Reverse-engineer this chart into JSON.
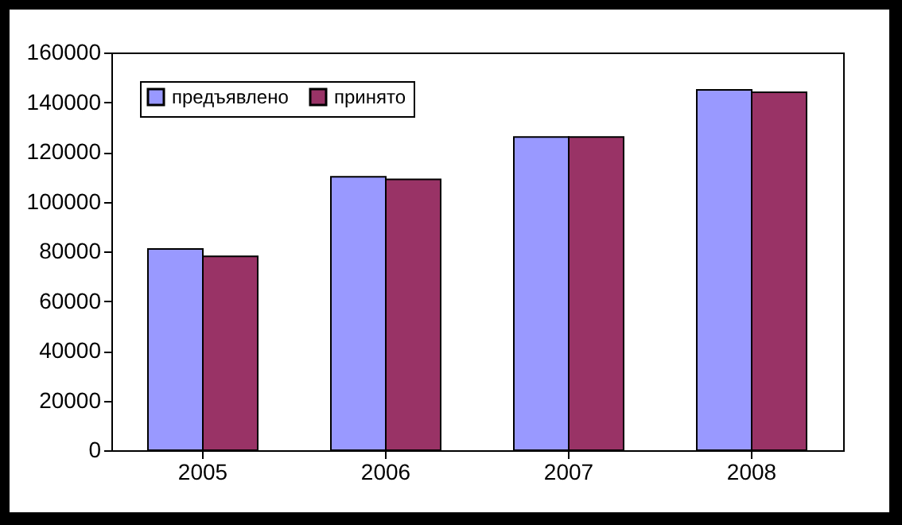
{
  "chart_data": {
    "type": "bar",
    "categories": [
      "2005",
      "2006",
      "2007",
      "2008"
    ],
    "series": [
      {
        "name": "предъявлено",
        "color": "#9999ff",
        "values": [
          81000,
          110000,
          126000,
          145000
        ]
      },
      {
        "name": "принято",
        "color": "#993366",
        "values": [
          78000,
          109000,
          126000,
          144000
        ]
      }
    ],
    "ylim": [
      0,
      160000
    ],
    "yticks": [
      0,
      20000,
      40000,
      60000,
      80000,
      100000,
      120000,
      140000,
      160000
    ],
    "grid": false,
    "legend": "top left"
  }
}
